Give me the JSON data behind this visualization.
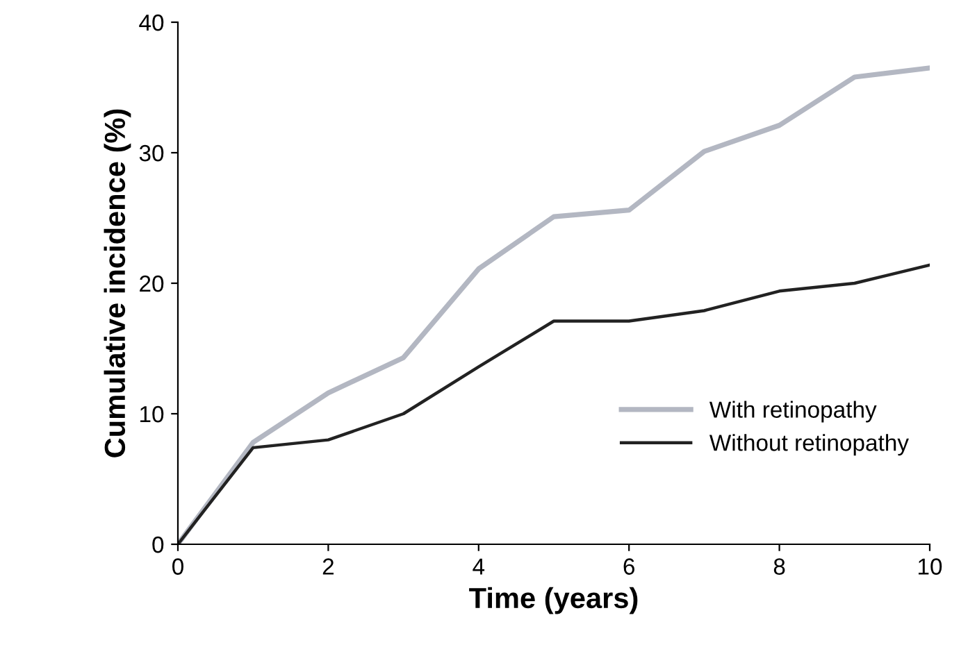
{
  "chart_data": {
    "type": "line",
    "xlabel": "Time (years)",
    "ylabel": "Cumulative incidence (%)",
    "x": [
      0,
      1,
      2,
      3,
      4,
      5,
      6,
      7,
      8,
      9,
      10
    ],
    "series": [
      {
        "name": "With retinopathy",
        "color": "#b3b7c2",
        "values": [
          0,
          7.8,
          11.6,
          14.3,
          21.1,
          25.1,
          25.6,
          30.1,
          32.1,
          35.8,
          36.5
        ]
      },
      {
        "name": "Without retinopathy",
        "color": "#222222",
        "values": [
          0,
          7.4,
          8.0,
          10.0,
          13.6,
          17.1,
          17.1,
          17.9,
          19.4,
          20.0,
          21.4
        ]
      }
    ],
    "xlim": [
      0,
      10
    ],
    "ylim": [
      0,
      40
    ],
    "xticks": [
      0,
      2,
      4,
      6,
      8,
      10
    ],
    "yticks": [
      0,
      10,
      20,
      30,
      40
    ],
    "grid": false,
    "legend": "bottom right",
    "marker": "none",
    "line_style": "solid"
  }
}
